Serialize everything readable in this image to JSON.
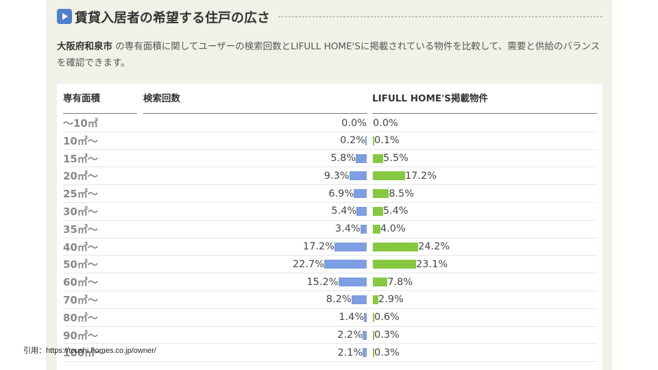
{
  "section": {
    "title": "賃貸入居者の希望する住戸の広さ",
    "description_city": "大阪府和泉市",
    "description_text": " の専有面積に関してユーザーの検索回数とLIFULL HOME'Sに掲載されている物件を比較して、需要と供給のバランスを確認できます。"
  },
  "table": {
    "headers": {
      "area": "専有面積",
      "search": "検索回数",
      "listings": "LIFULL HOME'S掲載物件"
    }
  },
  "colors": {
    "search_bar": "#7d9ee0",
    "listings_bar": "#86c940",
    "icon": "#4e7fcc"
  },
  "citation": "引用：https://toushi.homes.co.jp/owner/",
  "chart_data": {
    "type": "bar",
    "title": "賃貸入居者の希望する住戸の広さ",
    "orientation": "horizontal-butterfly",
    "categories": [
      "～10㎡",
      "10㎡～",
      "15㎡～",
      "20㎡～",
      "25㎡～",
      "30㎡～",
      "35㎡～",
      "40㎡～",
      "50㎡～",
      "60㎡～",
      "70㎡～",
      "80㎡～",
      "90㎡～",
      "100㎡～"
    ],
    "series": [
      {
        "name": "検索回数",
        "color": "#7d9ee0",
        "values": [
          0.0,
          0.2,
          5.8,
          9.3,
          6.9,
          5.4,
          3.4,
          17.2,
          22.7,
          15.2,
          8.2,
          1.4,
          2.2,
          2.1
        ]
      },
      {
        "name": "LIFULL HOME'S掲載物件",
        "color": "#86c940",
        "values": [
          0.0,
          0.1,
          5.5,
          17.2,
          8.5,
          5.4,
          4.0,
          24.2,
          23.1,
          7.8,
          2.9,
          0.6,
          0.3,
          0.3
        ]
      }
    ],
    "unit": "%",
    "xlabel": "専有面積",
    "ylabel": ""
  }
}
